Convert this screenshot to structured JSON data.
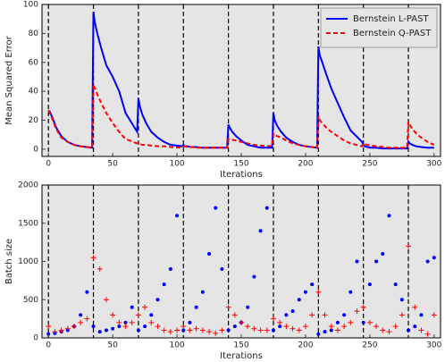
{
  "chart_data": [
    {
      "type": "line",
      "xlabel": "Iterations",
      "ylabel": "Mean Squared Error",
      "xlim": [
        -5,
        305
      ],
      "ylim": [
        -5,
        100
      ],
      "xticks": [
        0,
        50,
        100,
        150,
        200,
        250,
        300
      ],
      "yticks": [
        0,
        20,
        40,
        60,
        80,
        100
      ],
      "grid": false,
      "legend": "upper right",
      "vlines": [
        0,
        35,
        70,
        105,
        140,
        175,
        210,
        245,
        280
      ],
      "x": [
        0,
        1,
        3,
        6,
        10,
        15,
        20,
        25,
        34,
        35,
        36,
        38,
        41,
        45,
        50,
        55,
        60,
        69,
        70,
        71,
        73,
        76,
        80,
        85,
        90,
        95,
        104,
        105,
        106,
        108,
        111,
        115,
        120,
        125,
        130,
        139,
        140,
        141,
        143,
        146,
        150,
        155,
        160,
        165,
        174,
        175,
        176,
        178,
        181,
        185,
        190,
        195,
        200,
        209,
        210,
        211,
        213,
        216,
        220,
        225,
        230,
        235,
        244,
        245,
        246,
        248,
        251,
        255,
        260,
        265,
        270,
        279,
        280,
        281,
        283,
        286,
        290,
        295,
        300
      ],
      "series": [
        {
          "name": "Bernstein L-PAST",
          "color": "#0000ff",
          "dash": "solid",
          "values": [
            26,
            26,
            22,
            15,
            9,
            5,
            3,
            2,
            1,
            95,
            88,
            80,
            70,
            58,
            50,
            40,
            25,
            12,
            35,
            30,
            24,
            18,
            12,
            8,
            5,
            3,
            2,
            3,
            2,
            2,
            1.5,
            1.5,
            1,
            1,
            1,
            1,
            17,
            15,
            12,
            9,
            6,
            3,
            2,
            1,
            1,
            25,
            20,
            16,
            12,
            8,
            5,
            3,
            2,
            1,
            71,
            65,
            60,
            52,
            42,
            32,
            22,
            13,
            5,
            3,
            2,
            1.5,
            1,
            1,
            0.5,
            0.5,
            0.5,
            0.5,
            5,
            4,
            3,
            2,
            1.5,
            1,
            1
          ]
        },
        {
          "name": "Bernstein Q-PAST",
          "color": "#ff0000",
          "dash": "dashed",
          "values": [
            27,
            25,
            21,
            14,
            8,
            5,
            3,
            2,
            1,
            45,
            42,
            38,
            32,
            25,
            18,
            12,
            7,
            4,
            4,
            3.5,
            3,
            3,
            2.5,
            2,
            2,
            1.5,
            1,
            2,
            2,
            1.5,
            1.5,
            1,
            1,
            1,
            1,
            1,
            7,
            7,
            6.5,
            6,
            5,
            4,
            3,
            2.5,
            2,
            11,
            10,
            9,
            8,
            6,
            4,
            3,
            2,
            1,
            23,
            20,
            18,
            15,
            12,
            9,
            6,
            4,
            2,
            4,
            3.5,
            3,
            2.5,
            2,
            1.5,
            1,
            1,
            1,
            19,
            17,
            14,
            11,
            8,
            5,
            3
          ]
        }
      ]
    },
    {
      "type": "scatter",
      "xlabel": "Iterations",
      "ylabel": "Batch size",
      "xlim": [
        -5,
        305
      ],
      "ylim": [
        0,
        2000
      ],
      "xticks": [
        0,
        50,
        100,
        150,
        200,
        250,
        300
      ],
      "yticks": [
        0,
        500,
        1000,
        1500,
        2000
      ],
      "grid": false,
      "vlines": [
        0,
        35,
        70,
        105,
        140,
        175,
        210,
        245,
        280
      ],
      "x": [
        0,
        5,
        10,
        15,
        20,
        25,
        30,
        35,
        40,
        45,
        50,
        55,
        60,
        65,
        70,
        75,
        80,
        85,
        90,
        95,
        100,
        105,
        110,
        115,
        120,
        125,
        130,
        135,
        140,
        145,
        150,
        155,
        160,
        165,
        170,
        175,
        180,
        185,
        190,
        195,
        200,
        205,
        210,
        215,
        220,
        225,
        230,
        235,
        240,
        245,
        250,
        255,
        260,
        265,
        270,
        275,
        280,
        285,
        290,
        295,
        300
      ],
      "series": [
        {
          "color": "#0000ff",
          "marker": "circle",
          "values": [
            50,
            60,
            80,
            100,
            150,
            300,
            600,
            150,
            80,
            100,
            120,
            150,
            200,
            400,
            100,
            150,
            300,
            500,
            700,
            900,
            1600,
            100,
            200,
            400,
            600,
            1100,
            1700,
            900,
            100,
            150,
            200,
            400,
            800,
            1400,
            1700,
            100,
            150,
            300,
            350,
            500,
            600,
            700,
            50,
            80,
            100,
            200,
            300,
            600,
            1000,
            200,
            700,
            1000,
            1100,
            1600,
            700,
            500,
            100,
            150,
            300,
            1000,
            1050
          ]
        },
        {
          "color": "#ff0000",
          "marker": "plus",
          "values": [
            150,
            80,
            100,
            120,
            150,
            200,
            250,
            1050,
            900,
            500,
            300,
            200,
            150,
            200,
            300,
            400,
            200,
            150,
            100,
            80,
            100,
            150,
            100,
            120,
            100,
            80,
            60,
            100,
            400,
            300,
            200,
            150,
            120,
            100,
            100,
            250,
            200,
            150,
            120,
            100,
            150,
            300,
            600,
            300,
            150,
            100,
            150,
            200,
            350,
            400,
            200,
            150,
            100,
            80,
            150,
            300,
            1200,
            400,
            100,
            50,
            300
          ]
        }
      ]
    }
  ]
}
